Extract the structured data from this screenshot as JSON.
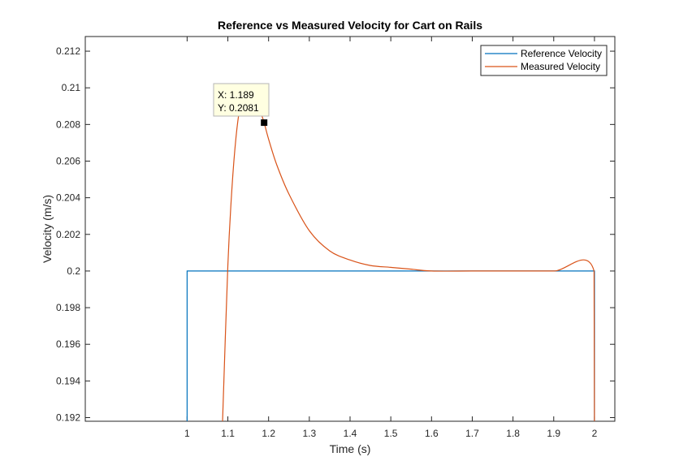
{
  "chart_data": {
    "type": "line",
    "title": "Reference vs Measured Velocity for Cart on Rails",
    "xlabel": "Time (s)",
    "ylabel": "Velocity (m/s)",
    "xlim": [
      0.75,
      2.05
    ],
    "ylim": [
      0.1918,
      0.2128
    ],
    "xticks": [
      1,
      1.1,
      1.2,
      1.3,
      1.4,
      1.5,
      1.6,
      1.7,
      1.8,
      1.9,
      2
    ],
    "xtick_labels": [
      "1",
      "1.1",
      "1.2",
      "1.3",
      "1.4",
      "1.5",
      "1.6",
      "1.7",
      "1.8",
      "1.9",
      "2"
    ],
    "yticks": [
      0.192,
      0.194,
      0.196,
      0.198,
      0.2,
      0.202,
      0.204,
      0.206,
      0.208,
      0.21,
      0.212
    ],
    "ytick_labels": [
      "0.192",
      "0.194",
      "0.196",
      "0.198",
      "0.2",
      "0.202",
      "0.204",
      "0.206",
      "0.208",
      "0.21",
      "0.212"
    ],
    "grid": false,
    "legend_position": "top-right",
    "series": [
      {
        "name": "Reference Velocity",
        "color": "#0072BD",
        "x": [
          1.0,
          1.0,
          2.0,
          2.0
        ],
        "y": [
          0.1918,
          0.2,
          0.2,
          0.1918
        ]
      },
      {
        "name": "Measured Velocity",
        "color": "#D95319",
        "x": [
          1.087,
          1.1,
          1.11,
          1.12,
          1.13,
          1.14,
          1.15,
          1.16,
          1.17,
          1.18,
          1.189,
          1.2,
          1.22,
          1.25,
          1.3,
          1.35,
          1.4,
          1.45,
          1.5,
          1.55,
          1.6,
          1.7,
          1.8,
          1.9,
          1.999,
          2.0
        ],
        "y": [
          0.1918,
          0.2003,
          0.2045,
          0.2073,
          0.209,
          0.2099,
          0.21,
          0.2097,
          0.2093,
          0.2087,
          0.2081,
          0.2072,
          0.2058,
          0.2042,
          0.2022,
          0.2011,
          0.2006,
          0.2003,
          0.2002,
          0.2001,
          0.2,
          0.2,
          0.2,
          0.2,
          0.2,
          0.1918
        ]
      }
    ],
    "datatip": {
      "x": 1.189,
      "y": 0.2081,
      "x_text": "X: 1.189",
      "y_text": "Y: 0.2081"
    }
  }
}
